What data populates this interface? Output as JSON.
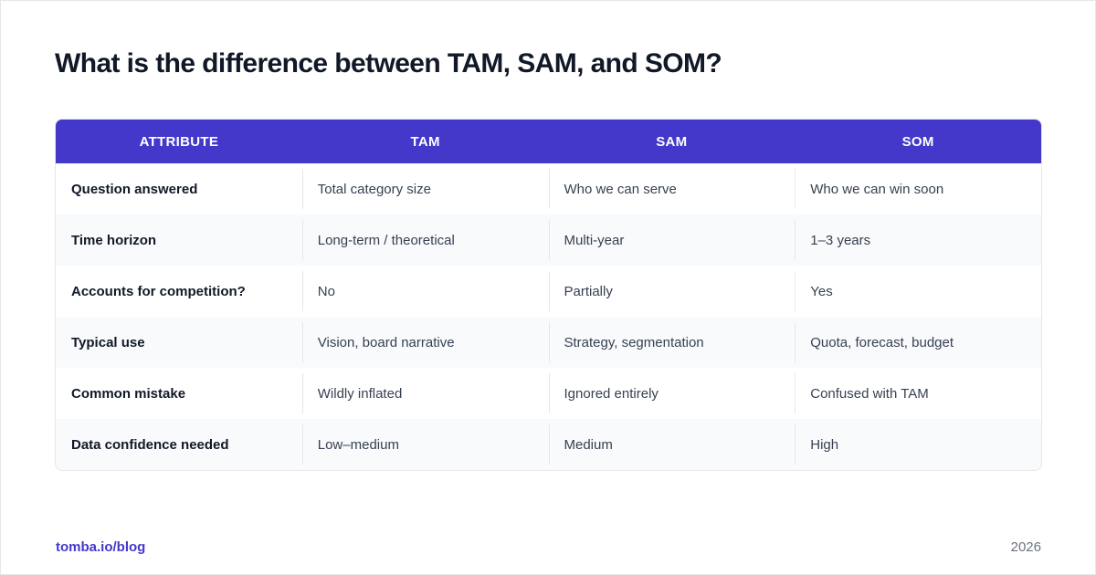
{
  "title": "What is the difference between TAM, SAM, and SOM?",
  "colors": {
    "header_bg": "#4338ca",
    "header_text": "#ffffff",
    "row_alt_bg": "#f8fafc",
    "link": "#4338ca"
  },
  "table": {
    "headers": [
      "ATTRIBUTE",
      "TAM",
      "SAM",
      "SOM"
    ],
    "rows": [
      [
        "Question answered",
        "Total category size",
        "Who we can serve",
        "Who we can win soon"
      ],
      [
        "Time horizon",
        "Long-term / theoretical",
        "Multi-year",
        "1–3 years"
      ],
      [
        "Accounts for competition?",
        "No",
        "Partially",
        "Yes"
      ],
      [
        "Typical use",
        "Vision, board narrative",
        "Strategy, segmentation",
        "Quota, forecast, budget"
      ],
      [
        "Common mistake",
        "Wildly inflated",
        "Ignored entirely",
        "Confused with TAM"
      ],
      [
        "Data confidence needed",
        "Low–medium",
        "Medium",
        "High"
      ]
    ]
  },
  "footer": {
    "link": "tomba.io/blog",
    "year": "2026"
  }
}
